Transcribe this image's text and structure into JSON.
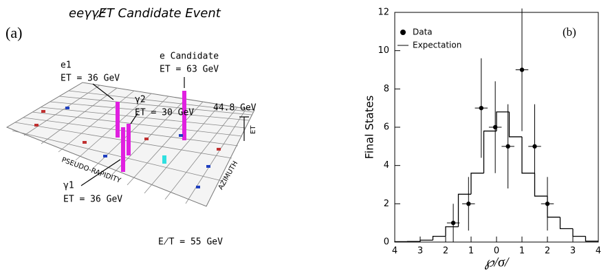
{
  "panel_a": {
    "title": "eeγγE̸T Candidate Event",
    "panel_label": "(a)",
    "labels": {
      "e1": "e1",
      "e1_et": "ET = 36 GeV",
      "g2": "γ2",
      "g2_et": "ET = 30 GeV",
      "ec": "e Candidate",
      "ec_et": "ET = 63 GeV",
      "scale": "44.8 GeV",
      "g1": "γ1",
      "g1_et": "ET = 36 GeV",
      "met": "E̸T = 55 GeV",
      "eta_axis": "PSEUDO-RAPIDITY",
      "phi_axis": "AZIMUTH",
      "et_axis": "ET"
    }
  },
  "chart_data": {
    "type": "histogram",
    "panel_label": "(b)",
    "xlabel": "℘/σ/",
    "ylabel": "Final States",
    "xlim": [
      -4,
      4
    ],
    "xticks": [
      {
        "value": -4,
        "label": "4"
      },
      {
        "value": -3,
        "label": "3"
      },
      {
        "value": -2,
        "label": "2"
      },
      {
        "value": -1,
        "label": "1"
      },
      0,
      1,
      2,
      3,
      4
    ],
    "ylim": [
      0,
      12
    ],
    "yticks": [
      0,
      2,
      4,
      6,
      8,
      10,
      12
    ],
    "bins": [
      -4,
      -3.5,
      -3,
      -2.5,
      -2,
      -1.5,
      -1,
      -0.5,
      0,
      0.5,
      1,
      1.5,
      2,
      2.5,
      3,
      3.5,
      4
    ],
    "series": [
      {
        "name": "Expectation",
        "color": "#000000",
        "values": [
          0.02,
          0.03,
          0.1,
          0.3,
          0.8,
          2.5,
          3.6,
          5.8,
          6.8,
          5.5,
          3.6,
          2.4,
          1.3,
          0.7,
          0.3,
          0.05
        ]
      }
    ],
    "points": {
      "name": "Data",
      "color": "#000000",
      "x": [
        -1.7,
        -1.1,
        -0.6,
        -0.05,
        0.45,
        1.0,
        1.5,
        2.0
      ],
      "y": [
        1,
        2,
        7,
        6,
        5,
        9,
        5,
        2
      ],
      "xerr": [
        0.25,
        0.25,
        0.25,
        0.25,
        0.25,
        0.25,
        0.25,
        0.25
      ],
      "yerr": [
        1,
        1.4,
        2.6,
        2.4,
        2.2,
        3.2,
        2.2,
        1.4
      ]
    }
  }
}
